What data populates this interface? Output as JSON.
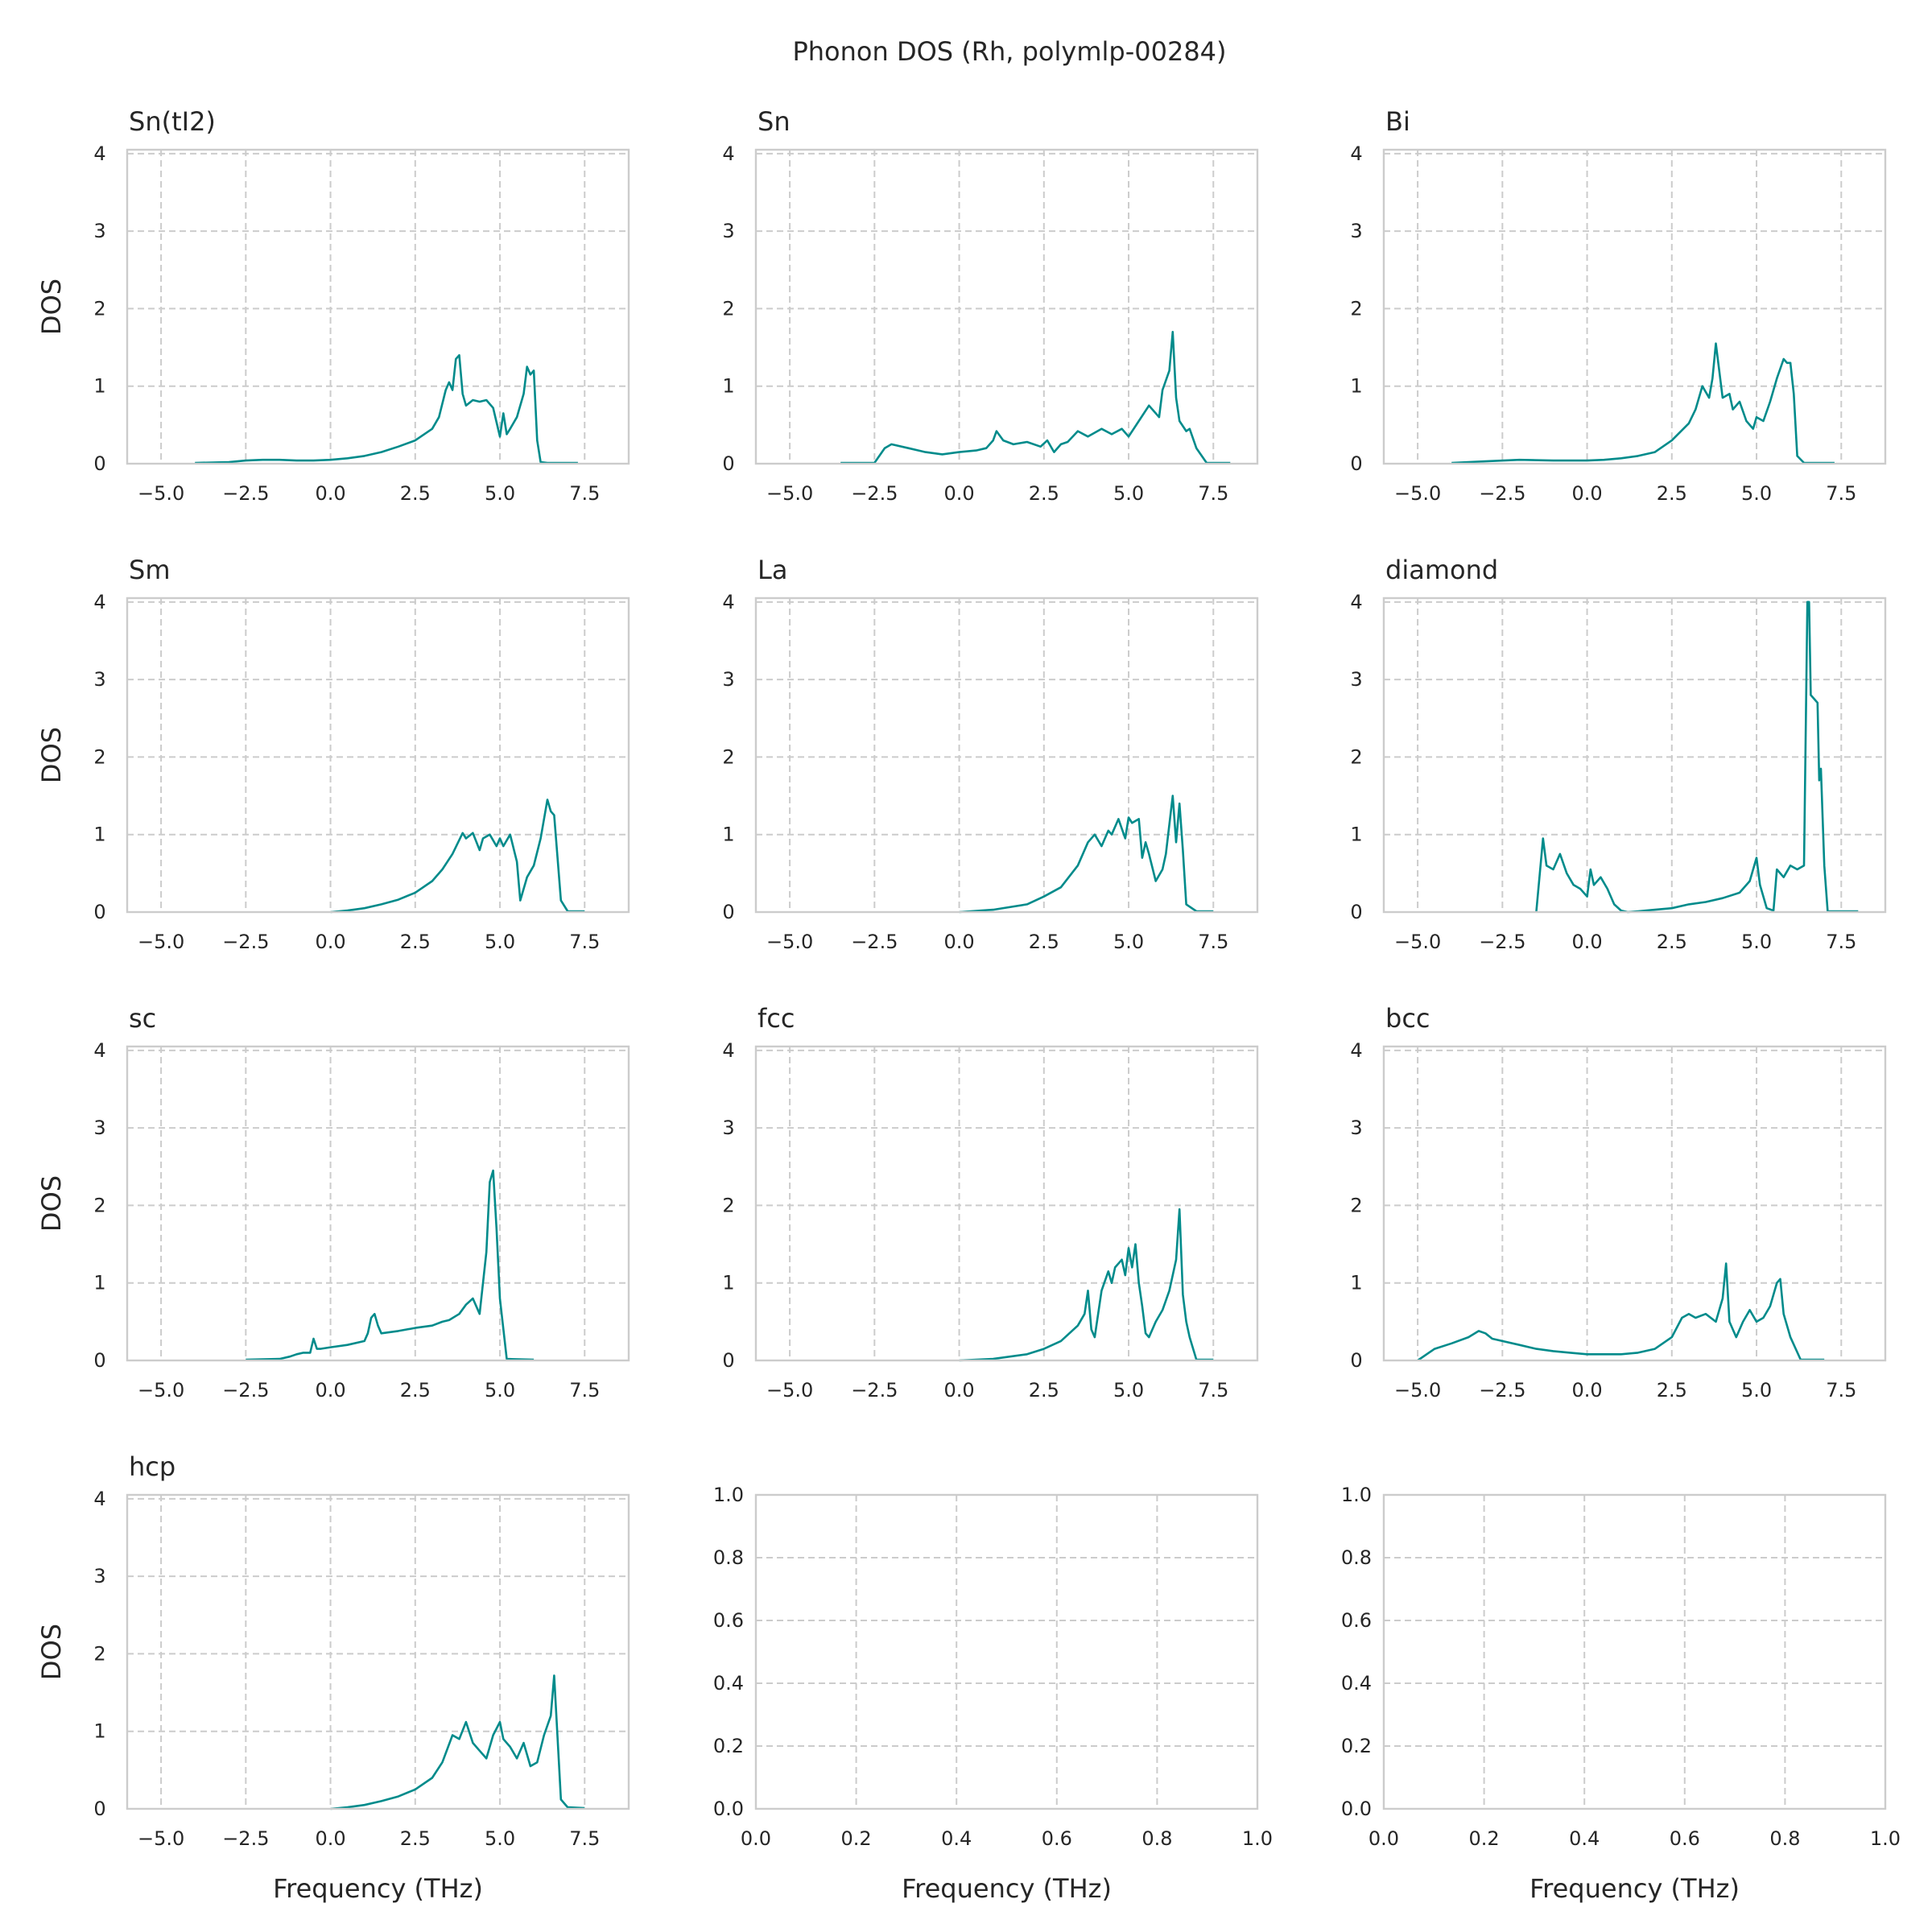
{
  "suptitle": "Phonon DOS (Rh, polymlp-00284)",
  "colors": {
    "line": "#008b8b",
    "grid": "#cccccc",
    "frame": "#cccccc",
    "text": "#262626"
  },
  "chart_data": [
    {
      "type": "line",
      "title": "Sn(tI2)",
      "xlabel": "",
      "ylabel": "DOS",
      "xlim": [
        -6.0,
        8.8
      ],
      "ylim": [
        0,
        4.05
      ],
      "xticks": [
        -5.0,
        -2.5,
        0.0,
        2.5,
        5.0,
        7.5
      ],
      "xticklabels": [
        "−5.0",
        "−2.5",
        "0.0",
        "2.5",
        "5.0",
        "7.5"
      ],
      "yticks": [
        0,
        1,
        2,
        3,
        4
      ],
      "yticklabels": [
        "0",
        "1",
        "2",
        "3",
        "4"
      ],
      "grid": true,
      "x": [
        -4.0,
        -3.0,
        -2.5,
        -2.0,
        -1.5,
        -1.0,
        -0.5,
        0.0,
        0.5,
        1.0,
        1.5,
        2.0,
        2.5,
        3.0,
        3.2,
        3.4,
        3.5,
        3.6,
        3.7,
        3.8,
        3.9,
        4.0,
        4.2,
        4.4,
        4.6,
        4.8,
        5.0,
        5.1,
        5.2,
        5.3,
        5.5,
        5.7,
        5.8,
        5.9,
        6.0,
        6.1,
        6.2,
        6.4,
        6.6,
        7.0,
        7.3
      ],
      "y": [
        0.01,
        0.02,
        0.04,
        0.05,
        0.05,
        0.04,
        0.04,
        0.05,
        0.07,
        0.1,
        0.15,
        0.22,
        0.3,
        0.45,
        0.6,
        0.95,
        1.05,
        0.95,
        1.35,
        1.4,
        0.9,
        0.75,
        0.82,
        0.8,
        0.82,
        0.72,
        0.35,
        0.65,
        0.38,
        0.45,
        0.6,
        0.9,
        1.25,
        1.15,
        1.2,
        0.3,
        0.02,
        0.01,
        0.01,
        0.01,
        0.01
      ]
    },
    {
      "type": "line",
      "title": "Sn",
      "xlabel": "",
      "ylabel": "",
      "xlim": [
        -6.0,
        8.8
      ],
      "ylim": [
        0,
        4.05
      ],
      "xticks": [
        -5.0,
        -2.5,
        0.0,
        2.5,
        5.0,
        7.5
      ],
      "xticklabels": [
        "−5.0",
        "−2.5",
        "0.0",
        "2.5",
        "5.0",
        "7.5"
      ],
      "yticks": [
        0,
        1,
        2,
        3,
        4
      ],
      "yticklabels": [
        "0",
        "1",
        "2",
        "3",
        "4"
      ],
      "grid": true,
      "x": [
        -3.5,
        -2.5,
        -2.2,
        -2.0,
        -1.5,
        -1.0,
        -0.5,
        0.0,
        0.5,
        0.8,
        1.0,
        1.1,
        1.3,
        1.6,
        2.0,
        2.4,
        2.6,
        2.8,
        3.0,
        3.2,
        3.5,
        3.8,
        4.2,
        4.5,
        4.8,
        5.0,
        5.3,
        5.6,
        5.9,
        6.0,
        6.2,
        6.3,
        6.4,
        6.5,
        6.7,
        6.8,
        7.0,
        7.3,
        8.0
      ],
      "y": [
        0.01,
        0.01,
        0.2,
        0.25,
        0.2,
        0.15,
        0.12,
        0.15,
        0.17,
        0.2,
        0.3,
        0.42,
        0.3,
        0.25,
        0.28,
        0.22,
        0.3,
        0.15,
        0.25,
        0.28,
        0.42,
        0.35,
        0.45,
        0.38,
        0.45,
        0.35,
        0.55,
        0.75,
        0.6,
        0.95,
        1.2,
        1.7,
        0.85,
        0.55,
        0.42,
        0.45,
        0.2,
        0.01,
        0.01
      ]
    },
    {
      "type": "line",
      "title": "Bi",
      "xlabel": "",
      "ylabel": "",
      "xlim": [
        -6.0,
        8.8
      ],
      "ylim": [
        0,
        4.05
      ],
      "xticks": [
        -5.0,
        -2.5,
        0.0,
        2.5,
        5.0,
        7.5
      ],
      "xticklabels": [
        "−5.0",
        "−2.5",
        "0.0",
        "2.5",
        "5.0",
        "7.5"
      ],
      "yticks": [
        0,
        1,
        2,
        3,
        4
      ],
      "yticklabels": [
        "0",
        "1",
        "2",
        "3",
        "4"
      ],
      "grid": true,
      "x": [
        -4.0,
        -3.0,
        -2.0,
        -1.0,
        0.0,
        0.5,
        1.0,
        1.5,
        2.0,
        2.5,
        3.0,
        3.2,
        3.4,
        3.6,
        3.7,
        3.8,
        4.0,
        4.2,
        4.3,
        4.5,
        4.7,
        4.9,
        5.0,
        5.2,
        5.4,
        5.6,
        5.8,
        5.9,
        6.0,
        6.1,
        6.2,
        6.4,
        7.3
      ],
      "y": [
        0.01,
        0.03,
        0.05,
        0.04,
        0.04,
        0.05,
        0.07,
        0.1,
        0.15,
        0.3,
        0.52,
        0.7,
        1.0,
        0.85,
        1.1,
        1.55,
        0.85,
        0.9,
        0.7,
        0.8,
        0.55,
        0.45,
        0.6,
        0.55,
        0.8,
        1.1,
        1.35,
        1.3,
        1.3,
        0.9,
        0.1,
        0.01,
        0.01
      ]
    },
    {
      "type": "line",
      "title": "Sm",
      "xlabel": "",
      "ylabel": "DOS",
      "xlim": [
        -6.0,
        8.8
      ],
      "ylim": [
        0,
        4.05
      ],
      "xticks": [
        -5.0,
        -2.5,
        0.0,
        2.5,
        5.0,
        7.5
      ],
      "xticklabels": [
        "−5.0",
        "−2.5",
        "0.0",
        "2.5",
        "5.0",
        "7.5"
      ],
      "yticks": [
        0,
        1,
        2,
        3,
        4
      ],
      "yticklabels": [
        "0",
        "1",
        "2",
        "3",
        "4"
      ],
      "grid": true,
      "x": [
        0.0,
        0.5,
        1.0,
        1.5,
        2.0,
        2.5,
        3.0,
        3.3,
        3.6,
        3.9,
        4.0,
        4.2,
        4.4,
        4.5,
        4.7,
        4.9,
        5.0,
        5.1,
        5.3,
        5.5,
        5.6,
        5.8,
        6.0,
        6.2,
        6.4,
        6.5,
        6.6,
        6.8,
        7.0,
        7.5
      ],
      "y": [
        0.0,
        0.02,
        0.05,
        0.1,
        0.16,
        0.25,
        0.4,
        0.55,
        0.75,
        1.02,
        0.95,
        1.02,
        0.8,
        0.95,
        1.0,
        0.85,
        0.95,
        0.85,
        1.0,
        0.65,
        0.15,
        0.45,
        0.6,
        0.95,
        1.45,
        1.3,
        1.25,
        0.15,
        0.01,
        0.01
      ]
    },
    {
      "type": "line",
      "title": "La",
      "xlabel": "",
      "ylabel": "",
      "xlim": [
        -6.0,
        8.8
      ],
      "ylim": [
        0,
        4.05
      ],
      "xticks": [
        -5.0,
        -2.5,
        0.0,
        2.5,
        5.0,
        7.5
      ],
      "xticklabels": [
        "−5.0",
        "−2.5",
        "0.0",
        "2.5",
        "5.0",
        "7.5"
      ],
      "yticks": [
        0,
        1,
        2,
        3,
        4
      ],
      "yticklabels": [
        "0",
        "1",
        "2",
        "3",
        "4"
      ],
      "grid": true,
      "x": [
        0.0,
        1.0,
        2.0,
        2.5,
        3.0,
        3.5,
        3.8,
        4.0,
        4.2,
        4.4,
        4.5,
        4.7,
        4.9,
        5.0,
        5.1,
        5.3,
        5.4,
        5.5,
        5.6,
        5.8,
        6.0,
        6.1,
        6.3,
        6.4,
        6.5,
        6.6,
        6.7,
        7.0,
        7.5
      ],
      "y": [
        0.0,
        0.03,
        0.1,
        0.2,
        0.32,
        0.6,
        0.9,
        1.0,
        0.85,
        1.05,
        1.0,
        1.2,
        0.95,
        1.22,
        1.15,
        1.2,
        0.7,
        0.9,
        0.75,
        0.4,
        0.55,
        0.75,
        1.5,
        0.9,
        1.4,
        0.8,
        0.1,
        0.01,
        0.01
      ]
    },
    {
      "type": "line",
      "title": "diamond",
      "xlabel": "",
      "ylabel": "",
      "xlim": [
        -6.0,
        8.8
      ],
      "ylim": [
        0,
        4.05
      ],
      "xticks": [
        -5.0,
        -2.5,
        0.0,
        2.5,
        5.0,
        7.5
      ],
      "xticklabels": [
        "−5.0",
        "−2.5",
        "0.0",
        "2.5",
        "5.0",
        "7.5"
      ],
      "yticks": [
        0,
        1,
        2,
        3,
        4
      ],
      "yticklabels": [
        "0",
        "1",
        "2",
        "3",
        "4"
      ],
      "grid": true,
      "x": [
        -1.5,
        -1.3,
        -1.2,
        -1.0,
        -0.8,
        -0.6,
        -0.4,
        -0.2,
        0.0,
        0.1,
        0.2,
        0.4,
        0.6,
        0.8,
        1.0,
        1.2,
        1.5,
        2.0,
        2.5,
        3.0,
        3.5,
        4.0,
        4.5,
        4.8,
        5.0,
        5.1,
        5.3,
        5.5,
        5.6,
        5.8,
        6.0,
        6.2,
        6.4,
        6.5,
        6.55,
        6.6,
        6.8,
        6.85,
        6.9,
        7.0,
        7.1,
        7.5,
        8.0
      ],
      "y": [
        0.0,
        0.95,
        0.6,
        0.55,
        0.75,
        0.5,
        0.35,
        0.3,
        0.2,
        0.55,
        0.35,
        0.45,
        0.3,
        0.1,
        0.02,
        0.0,
        0.01,
        0.03,
        0.05,
        0.1,
        0.13,
        0.18,
        0.25,
        0.4,
        0.7,
        0.35,
        0.05,
        0.02,
        0.55,
        0.45,
        0.6,
        0.55,
        0.6,
        4.0,
        4.0,
        2.8,
        2.7,
        1.7,
        1.85,
        0.6,
        0.01,
        0.01,
        0.01
      ]
    },
    {
      "type": "line",
      "title": "sc",
      "xlabel": "",
      "ylabel": "DOS",
      "xlim": [
        -6.0,
        8.8
      ],
      "ylim": [
        0,
        4.05
      ],
      "xticks": [
        -5.0,
        -2.5,
        0.0,
        2.5,
        5.0,
        7.5
      ],
      "xticklabels": [
        "−5.0",
        "−2.5",
        "0.0",
        "2.5",
        "5.0",
        "7.5"
      ],
      "yticks": [
        0,
        1,
        2,
        3,
        4
      ],
      "yticklabels": [
        "0",
        "1",
        "2",
        "3",
        "4"
      ],
      "grid": true,
      "x": [
        -2.5,
        -1.5,
        -1.2,
        -1.0,
        -0.8,
        -0.6,
        -0.5,
        -0.4,
        -0.3,
        0.0,
        0.5,
        1.0,
        1.1,
        1.2,
        1.3,
        1.4,
        1.5,
        2.0,
        2.5,
        3.0,
        3.3,
        3.5,
        3.8,
        4.0,
        4.2,
        4.4,
        4.6,
        4.7,
        4.8,
        4.9,
        5.0,
        5.2,
        6.0
      ],
      "y": [
        0.01,
        0.02,
        0.05,
        0.08,
        0.1,
        0.1,
        0.28,
        0.15,
        0.15,
        0.17,
        0.2,
        0.25,
        0.35,
        0.55,
        0.6,
        0.45,
        0.35,
        0.38,
        0.42,
        0.45,
        0.5,
        0.52,
        0.6,
        0.72,
        0.8,
        0.6,
        1.4,
        2.3,
        2.45,
        1.7,
        0.8,
        0.02,
        0.01
      ]
    },
    {
      "type": "line",
      "title": "fcc",
      "xlabel": "",
      "ylabel": "",
      "xlim": [
        -6.0,
        8.8
      ],
      "ylim": [
        0,
        4.05
      ],
      "xticks": [
        -5.0,
        -2.5,
        0.0,
        2.5,
        5.0,
        7.5
      ],
      "xticklabels": [
        "−5.0",
        "−2.5",
        "0.0",
        "2.5",
        "5.0",
        "7.5"
      ],
      "yticks": [
        0,
        1,
        2,
        3,
        4
      ],
      "yticklabels": [
        "0",
        "1",
        "2",
        "3",
        "4"
      ],
      "grid": true,
      "x": [
        0.0,
        1.0,
        2.0,
        2.5,
        3.0,
        3.5,
        3.7,
        3.8,
        3.9,
        4.0,
        4.2,
        4.4,
        4.5,
        4.6,
        4.8,
        4.9,
        5.0,
        5.1,
        5.2,
        5.3,
        5.4,
        5.5,
        5.6,
        5.8,
        6.0,
        6.2,
        6.4,
        6.5,
        6.6,
        6.7,
        6.8,
        7.0,
        7.5
      ],
      "y": [
        0.0,
        0.02,
        0.08,
        0.15,
        0.25,
        0.45,
        0.6,
        0.9,
        0.4,
        0.3,
        0.9,
        1.15,
        1.0,
        1.2,
        1.3,
        1.1,
        1.45,
        1.2,
        1.5,
        1.0,
        0.7,
        0.35,
        0.3,
        0.5,
        0.65,
        0.9,
        1.3,
        1.95,
        0.85,
        0.5,
        0.3,
        0.01,
        0.01
      ]
    },
    {
      "type": "line",
      "title": "bcc",
      "xlabel": "",
      "ylabel": "",
      "xlim": [
        -6.0,
        8.8
      ],
      "ylim": [
        0,
        4.05
      ],
      "xticks": [
        -5.0,
        -2.5,
        0.0,
        2.5,
        5.0,
        7.5
      ],
      "xticklabels": [
        "−5.0",
        "−2.5",
        "0.0",
        "2.5",
        "5.0",
        "7.5"
      ],
      "yticks": [
        0,
        1,
        2,
        3,
        4
      ],
      "yticklabels": [
        "0",
        "1",
        "2",
        "3",
        "4"
      ],
      "grid": true,
      "x": [
        -5.0,
        -4.5,
        -4.0,
        -3.5,
        -3.2,
        -3.0,
        -2.8,
        -2.5,
        -2.0,
        -1.5,
        -1.0,
        -0.5,
        0.0,
        0.5,
        1.0,
        1.5,
        2.0,
        2.5,
        2.8,
        3.0,
        3.2,
        3.5,
        3.8,
        4.0,
        4.1,
        4.2,
        4.4,
        4.6,
        4.8,
        5.0,
        5.2,
        5.4,
        5.6,
        5.7,
        5.8,
        6.0,
        6.3,
        7.0
      ],
      "y": [
        0.0,
        0.15,
        0.22,
        0.3,
        0.38,
        0.35,
        0.28,
        0.25,
        0.2,
        0.15,
        0.12,
        0.1,
        0.08,
        0.08,
        0.08,
        0.1,
        0.15,
        0.3,
        0.55,
        0.6,
        0.55,
        0.6,
        0.5,
        0.8,
        1.25,
        0.5,
        0.3,
        0.5,
        0.65,
        0.5,
        0.55,
        0.7,
        1.0,
        1.05,
        0.6,
        0.3,
        0.01,
        0.01
      ]
    },
    {
      "type": "line",
      "title": "hcp",
      "xlabel": "Frequency (THz)",
      "ylabel": "DOS",
      "xlim": [
        -6.0,
        8.8
      ],
      "ylim": [
        0,
        4.05
      ],
      "xticks": [
        -5.0,
        -2.5,
        0.0,
        2.5,
        5.0,
        7.5
      ],
      "xticklabels": [
        "−5.0",
        "−2.5",
        "0.0",
        "2.5",
        "5.0",
        "7.5"
      ],
      "yticks": [
        0,
        1,
        2,
        3,
        4
      ],
      "yticklabels": [
        "0",
        "1",
        "2",
        "3",
        "4"
      ],
      "grid": true,
      "x": [
        0.0,
        0.5,
        1.0,
        1.5,
        2.0,
        2.5,
        3.0,
        3.3,
        3.6,
        3.8,
        4.0,
        4.2,
        4.4,
        4.6,
        4.8,
        5.0,
        5.1,
        5.3,
        5.5,
        5.7,
        5.9,
        6.1,
        6.3,
        6.5,
        6.6,
        6.8,
        7.0,
        7.5
      ],
      "y": [
        0.0,
        0.02,
        0.05,
        0.1,
        0.16,
        0.25,
        0.4,
        0.6,
        0.95,
        0.9,
        1.12,
        0.85,
        0.75,
        0.65,
        0.95,
        1.12,
        0.9,
        0.8,
        0.65,
        0.85,
        0.55,
        0.6,
        0.95,
        1.2,
        1.72,
        0.12,
        0.02,
        0.01
      ]
    },
    {
      "type": "line",
      "title": "",
      "xlabel": "Frequency (THz)",
      "ylabel": "",
      "xlim": [
        0.0,
        1.0
      ],
      "ylim": [
        0.0,
        1.0
      ],
      "xticks": [
        0.0,
        0.2,
        0.4,
        0.6,
        0.8,
        1.0
      ],
      "xticklabels": [
        "0.0",
        "0.2",
        "0.4",
        "0.6",
        "0.8",
        "1.0"
      ],
      "yticks": [
        0.0,
        0.2,
        0.4,
        0.6,
        0.8,
        1.0
      ],
      "yticklabels": [
        "0.0",
        "0.2",
        "0.4",
        "0.6",
        "0.8",
        "1.0"
      ],
      "grid": true,
      "x": [],
      "y": []
    },
    {
      "type": "line",
      "title": "",
      "xlabel": "Frequency (THz)",
      "ylabel": "",
      "xlim": [
        0.0,
        1.0
      ],
      "ylim": [
        0.0,
        1.0
      ],
      "xticks": [
        0.0,
        0.2,
        0.4,
        0.6,
        0.8,
        1.0
      ],
      "xticklabels": [
        "0.0",
        "0.2",
        "0.4",
        "0.6",
        "0.8",
        "1.0"
      ],
      "yticks": [
        0.0,
        0.2,
        0.4,
        0.6,
        0.8,
        1.0
      ],
      "yticklabels": [
        "0.0",
        "0.2",
        "0.4",
        "0.6",
        "0.8",
        "1.0"
      ],
      "grid": true,
      "x": [],
      "y": []
    }
  ]
}
